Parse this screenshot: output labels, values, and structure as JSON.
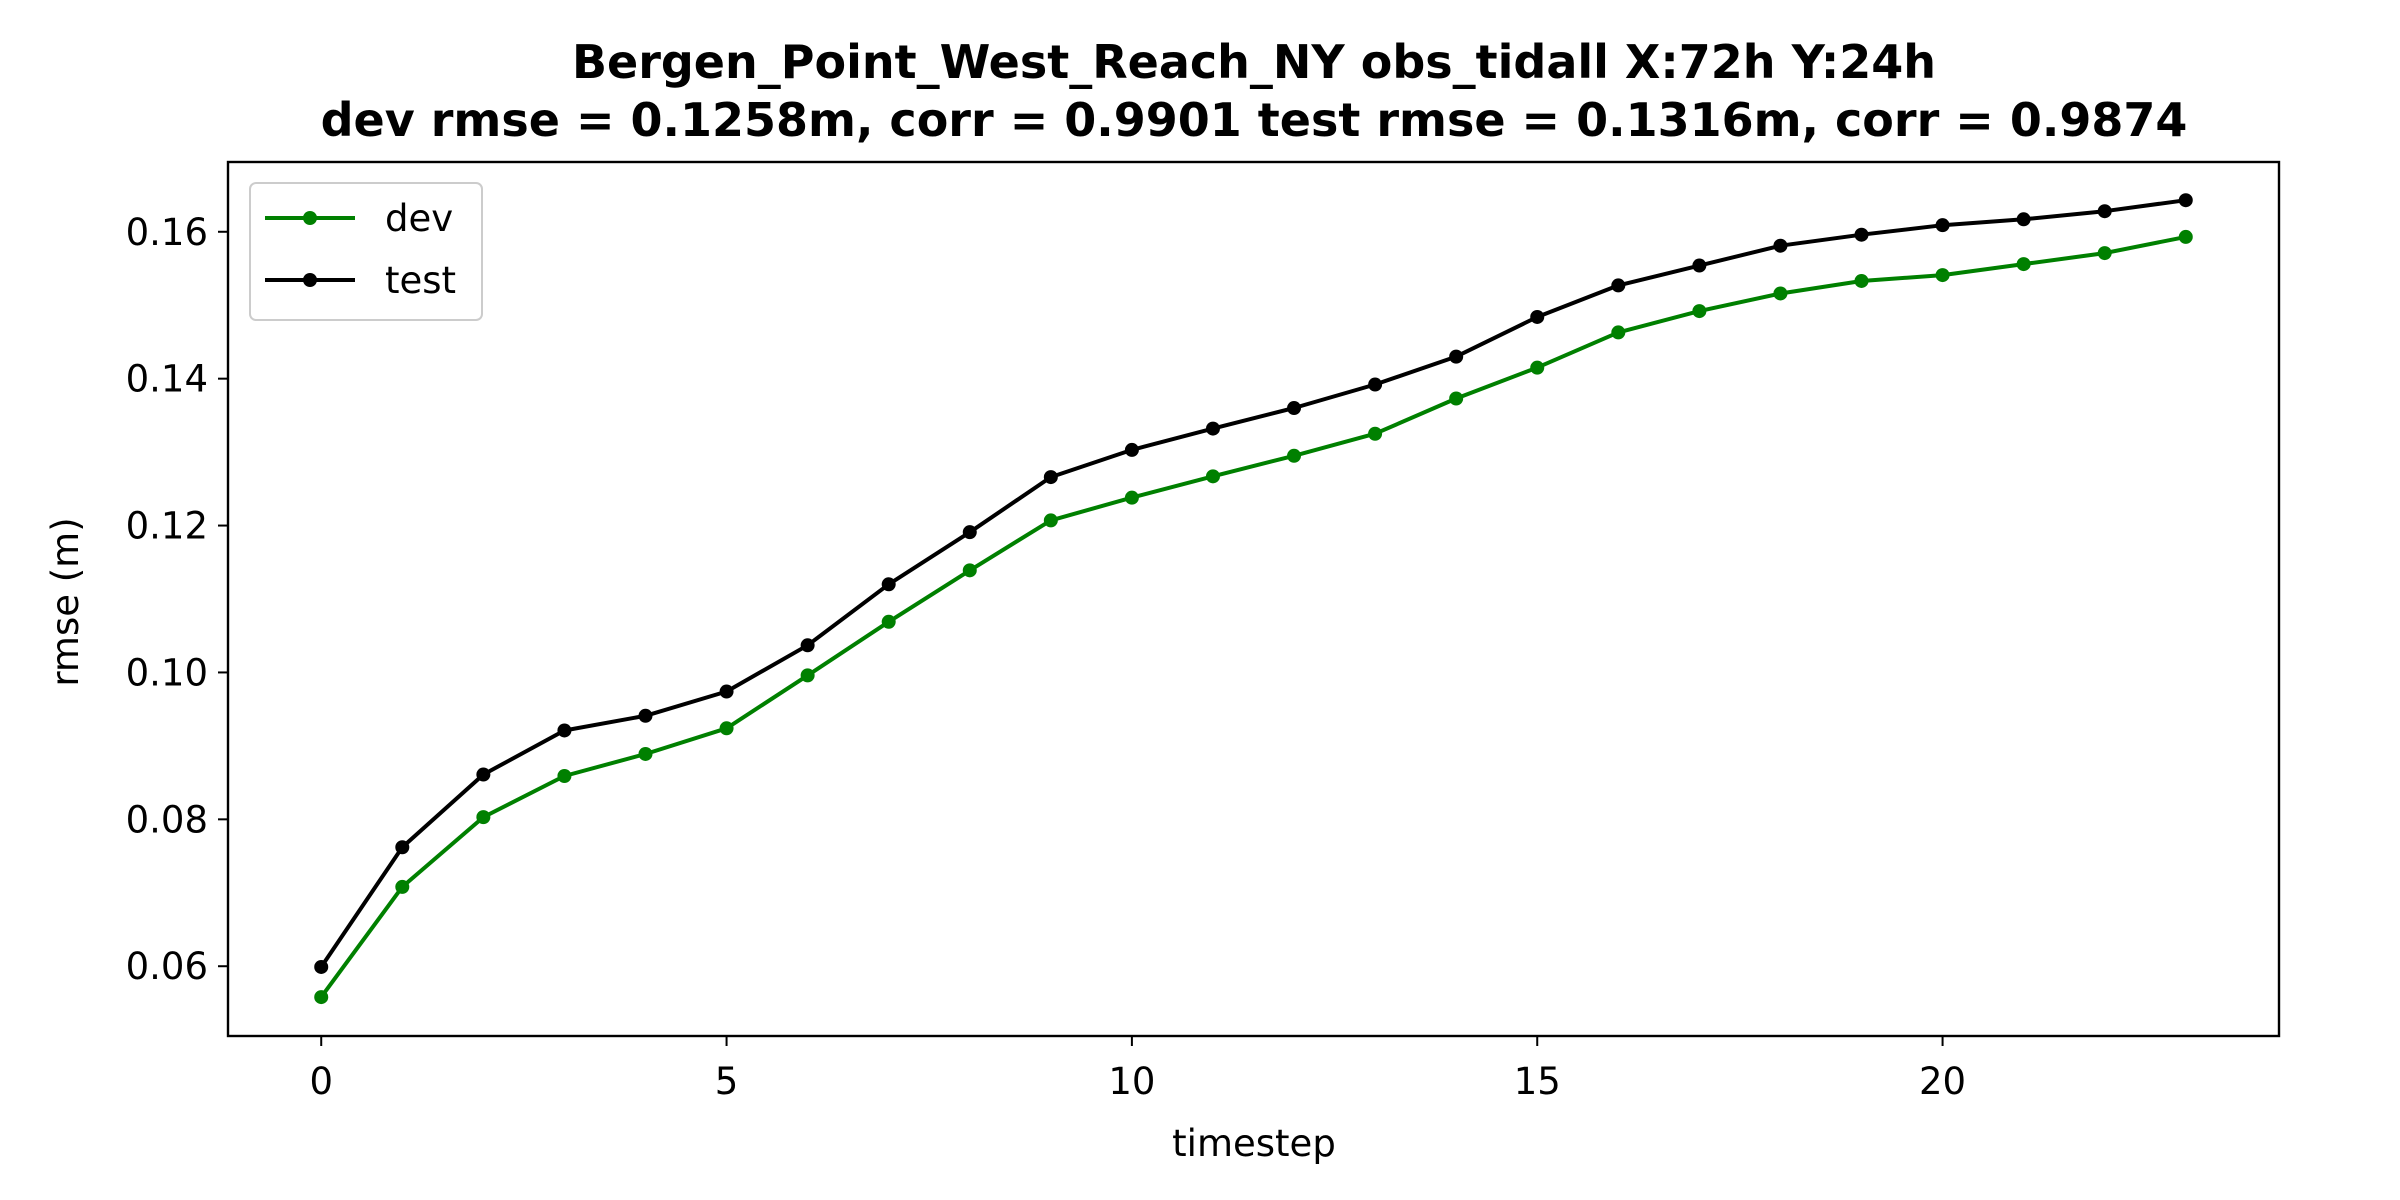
{
  "chart_data": {
    "type": "line",
    "title_line1": "Bergen_Point_West_Reach_NY   obs_tidall   X:72h   Y:24h",
    "title_line2": "dev rmse = 0.1258m, corr = 0.9901   test rmse = 0.1316m, corr = 0.9874",
    "xlabel": "timestep",
    "ylabel": "rmse (m)",
    "xlim": [
      -1.15,
      24.15
    ],
    "ylim": [
      0.0505,
      0.1695
    ],
    "xticks": [
      0,
      5,
      10,
      15,
      20
    ],
    "xtick_labels": [
      "0",
      "5",
      "10",
      "15",
      "20"
    ],
    "yticks": [
      0.06,
      0.08,
      0.1,
      0.12,
      0.14,
      0.16
    ],
    "ytick_labels": [
      "0.06",
      "0.08",
      "0.10",
      "0.12",
      "0.14",
      "0.16"
    ],
    "grid": false,
    "legend_position": "upper-left",
    "x": [
      0,
      1,
      2,
      3,
      4,
      5,
      6,
      7,
      8,
      9,
      10,
      11,
      12,
      13,
      14,
      15,
      16,
      17,
      18,
      19,
      20,
      21,
      22,
      23
    ],
    "series": [
      {
        "name": "dev",
        "color": "#008000",
        "values": [
          0.0558,
          0.0708,
          0.0803,
          0.0859,
          0.0889,
          0.0924,
          0.0996,
          0.1069,
          0.1139,
          0.1207,
          0.1238,
          0.1267,
          0.1295,
          0.1325,
          0.1373,
          0.1415,
          0.1463,
          0.1492,
          0.1516,
          0.1533,
          0.1541,
          0.1556,
          0.1571,
          0.1593
        ]
      },
      {
        "name": "test",
        "color": "#000000",
        "values": [
          0.0599,
          0.0762,
          0.0861,
          0.0921,
          0.0941,
          0.0974,
          0.1037,
          0.112,
          0.1191,
          0.1266,
          0.1303,
          0.1332,
          0.136,
          0.1392,
          0.143,
          0.1484,
          0.1527,
          0.1554,
          0.1581,
          0.1596,
          0.1609,
          0.1617,
          0.1628,
          0.1643
        ]
      }
    ]
  }
}
